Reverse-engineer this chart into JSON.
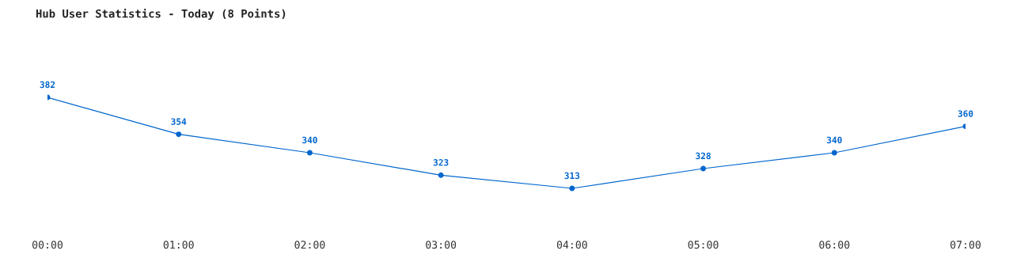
{
  "chart_data": {
    "type": "line",
    "title": "Hub User Statistics - Today (8 Points)",
    "categories": [
      "00:00",
      "01:00",
      "02:00",
      "03:00",
      "04:00",
      "05:00",
      "06:00",
      "07:00"
    ],
    "series": [
      {
        "color": "#0066cc",
        "values": [
          382,
          354,
          340,
          323,
          313,
          328,
          340,
          360
        ]
      }
    ],
    "data_labels": true,
    "marker": "circle",
    "line_style": "solid",
    "grid": false,
    "legend": false
  }
}
